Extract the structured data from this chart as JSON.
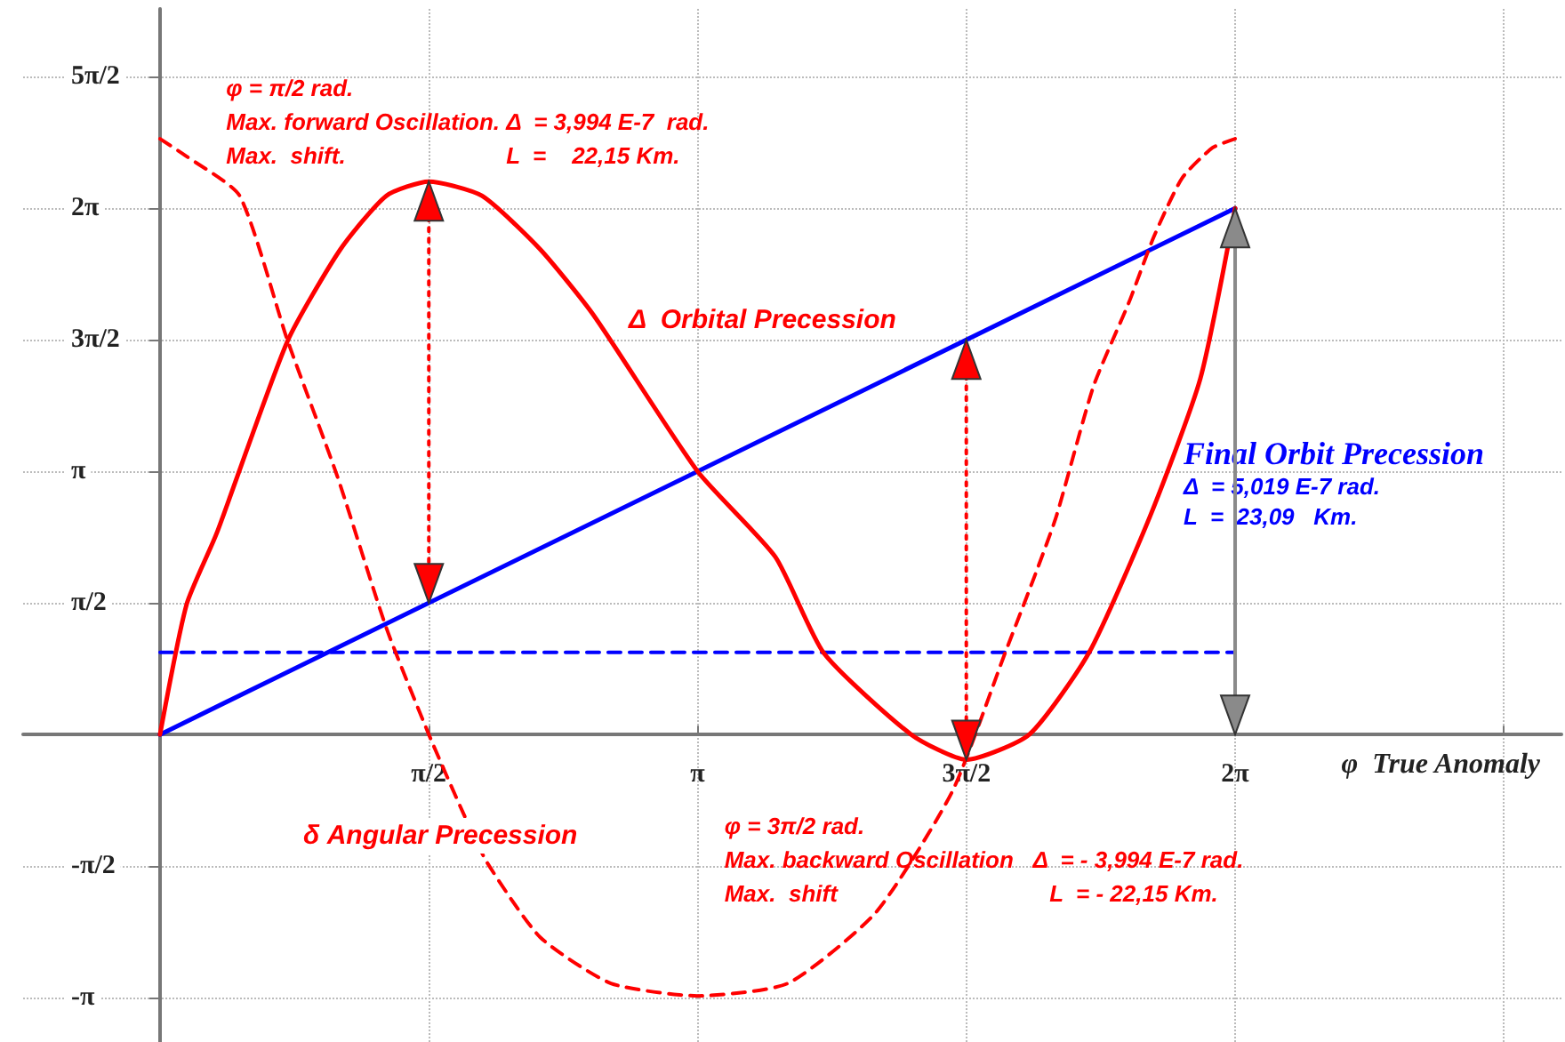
{
  "chart_data": {
    "type": "line",
    "xlabel": "φ  True Anomaly",
    "xlim": [
      -0.8,
      8.19
    ],
    "ylim": [
      -3.67,
      8.66
    ],
    "xticks": [
      {
        "value": 1.5708,
        "label": "π/2"
      },
      {
        "value": 3.1416,
        "label": "π"
      },
      {
        "value": 4.7124,
        "label": "3π/2"
      },
      {
        "value": 6.2832,
        "label": "2π"
      },
      {
        "value": 7.854,
        "label": null
      }
    ],
    "yticks": [
      {
        "value": -3.1416,
        "label": "-π"
      },
      {
        "value": -1.5708,
        "label": "-π/2"
      },
      {
        "value": 1.5708,
        "label": "π/2"
      },
      {
        "value": 3.1416,
        "label": "π"
      },
      {
        "value": 4.7124,
        "label": "3π/2"
      },
      {
        "value": 6.2832,
        "label": "2π"
      },
      {
        "value": 7.854,
        "label": "5π/2"
      }
    ],
    "grid": true,
    "legend": false,
    "marker": "none",
    "line_style": "solid",
    "series": [
      {
        "name": "Δ  Orbital Precession",
        "color": "#ff0000",
        "x": [
          0,
          0.155,
          0.331,
          0.744,
          1.054,
          1.323,
          1.571,
          1.881,
          2.222,
          2.532,
          3.142,
          3.596,
          3.88,
          4.39,
          4.712,
          5.08,
          5.43,
          5.787,
          6.08,
          6.283
        ],
        "values": [
          0,
          1.55,
          2.4,
          4.69,
          5.79,
          6.43,
          6.6,
          6.43,
          5.79,
          5.01,
          3.14,
          2.12,
          0.97,
          0,
          -0.3,
          0,
          0.98,
          2.61,
          4.25,
          6.28
        ]
      },
      {
        "name": "δ Angular Precession",
        "color": "#ff0000",
        "line_style": "dashed",
        "x": [
          0,
          0.155,
          0.465,
          0.744,
          1.033,
          1.323,
          1.571,
          1.777,
          1.912,
          2.222,
          2.635,
          3.142,
          3.669,
          4.185,
          4.63,
          4.94,
          5.115,
          5.239,
          5.456,
          5.663,
          5.808,
          5.973,
          6.149,
          6.283
        ],
        "values": [
          7.11,
          6.9,
          6.43,
          4.71,
          3.1,
          1.27,
          0,
          -0.96,
          -1.53,
          -2.42,
          -2.97,
          -3.12,
          -2.97,
          -2.12,
          -0.68,
          0.98,
          1.91,
          2.61,
          4.16,
          5.16,
          5.94,
          6.64,
          7.0,
          7.11
        ]
      },
      {
        "name": "Final Orbit Precession\nΔ  = 5,019 E-7 rad.\nL  =  23,09   Km.",
        "color": "#0000ff",
        "x": [
          0,
          6.283
        ],
        "values": [
          0,
          6.28
        ]
      },
      {
        "color": "#0000ff",
        "line_style": "dashed",
        "x": [
          0,
          6.283
        ],
        "values": [
          0.98,
          0.98
        ]
      }
    ],
    "annotations": [
      {
        "text": "φ = π/2 rad.\nMax. forward Oscillation. Δ  = 3,994 E-7  rad.\nMax.  shift.                         L  =    22,15 Km.",
        "x": 1.571,
        "y": 6.6
      },
      {
        "text": "φ = 3π/2 rad.\nMax. backward Oscillation   Δ  = - 3,994 E-7 rad.\nMax.  shift                                 L  = - 22,15 Km.",
        "x": 4.712,
        "y": -0.3
      }
    ]
  }
}
